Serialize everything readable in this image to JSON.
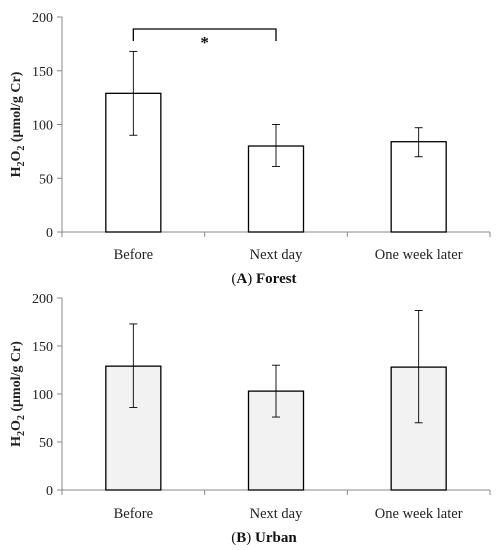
{
  "chart_data": [
    {
      "type": "bar",
      "caption_letter": "A",
      "caption_name": "Forest",
      "ylabel": "H2O2 (μmol/g Cr)",
      "ylabel_parts": {
        "h": "H",
        "sub1": "2",
        "o": "O",
        "sub2": "2",
        "unit": " (μmol/g Cr)"
      },
      "categories": [
        "Before",
        "Next day",
        "One week later"
      ],
      "values": [
        129,
        80,
        84
      ],
      "error_low": [
        90,
        61,
        70
      ],
      "error_high": [
        168,
        100,
        97
      ],
      "ylim": [
        0,
        200
      ],
      "yticks": [
        0,
        50,
        100,
        150,
        200
      ],
      "bar_fill": "#ffffff",
      "significance": {
        "from": 0,
        "to": 1,
        "label": "*"
      }
    },
    {
      "type": "bar",
      "caption_letter": "B",
      "caption_name": "Urban",
      "ylabel": "H2O2 (μmol/g Cr)",
      "ylabel_parts": {
        "h": "H",
        "sub1": "2",
        "o": "O",
        "sub2": "2",
        "unit": " (μmol/g Cr)"
      },
      "categories": [
        "Before",
        "Next day",
        "One week later"
      ],
      "values": [
        129,
        103,
        128
      ],
      "error_low": [
        86,
        76,
        70
      ],
      "error_high": [
        173,
        130,
        187
      ],
      "ylim": [
        0,
        200
      ],
      "yticks": [
        0,
        50,
        100,
        150,
        200
      ],
      "bar_fill": "#f2f2f2",
      "significance": null
    }
  ]
}
